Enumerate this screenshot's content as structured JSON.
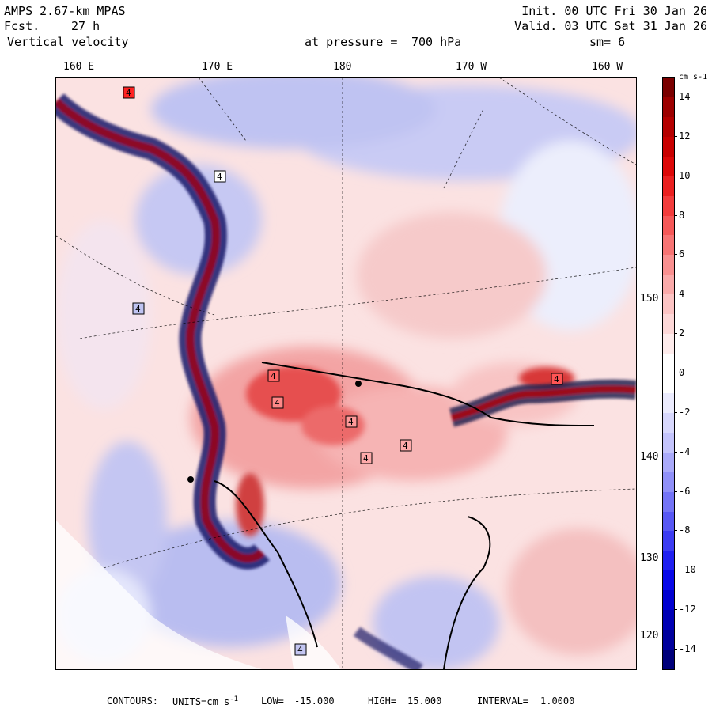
{
  "header": {
    "model": "AMPS 2.67-km MPAS",
    "fcst_label": "Fcst.",
    "fcst_value": "27 h",
    "field": "Vertical velocity",
    "pressure_label": "at pressure =",
    "pressure_value": "700 hPa",
    "init": "Init. 00 UTC Fri 30 Jan 26",
    "valid": "Valid. 03 UTC Sat 31 Jan 26",
    "smooth": "sm= 6"
  },
  "lon_labels": [
    "160 E",
    "170 E",
    "180",
    "170 W",
    "160 W"
  ],
  "lat_labels": [
    "150 W",
    "140 W",
    "130 W",
    "120 W"
  ],
  "colorbar": {
    "units": "cm s-1",
    "tick_labels": [
      "14",
      "12",
      "10",
      "8",
      "6",
      "4",
      "2",
      "0",
      "-2",
      "-4",
      "-6",
      "-8",
      "-10",
      "-12",
      "-14"
    ],
    "colors": [
      "#7a0000",
      "#9c0000",
      "#b40000",
      "#c80000",
      "#dc0808",
      "#ea2020",
      "#f23c3c",
      "#f55858",
      "#f77474",
      "#f99090",
      "#faaaaa",
      "#fcc4c4",
      "#fdd8d8",
      "#feecec",
      "#ffffff",
      "#ffffff",
      "#ececfe",
      "#d8d8fd",
      "#c4c4fc",
      "#aaaafa",
      "#9090f8",
      "#7474f6",
      "#5858f4",
      "#3c3cf2",
      "#2020f0",
      "#0808e8",
      "#0000d0",
      "#0000b4",
      "#00009c",
      "#00007a"
    ],
    "value_range": [
      -15,
      15
    ]
  },
  "markers": [
    "4",
    "4",
    "4",
    "4",
    "4",
    "4",
    "4",
    "4",
    "4",
    "4"
  ],
  "footer": {
    "contours_label": "CONTOURS:",
    "units_label": "UNITS=cm s",
    "units_exp": "-1",
    "low_label": "LOW=",
    "low_value": "-15.000",
    "high_label": "HIGH=",
    "high_value": "15.000",
    "interval_label": "INTERVAL=",
    "interval_value": "1.0000"
  },
  "colors": {
    "positive": "#e83030",
    "negative": "#3030e0",
    "coast": "#000000"
  }
}
